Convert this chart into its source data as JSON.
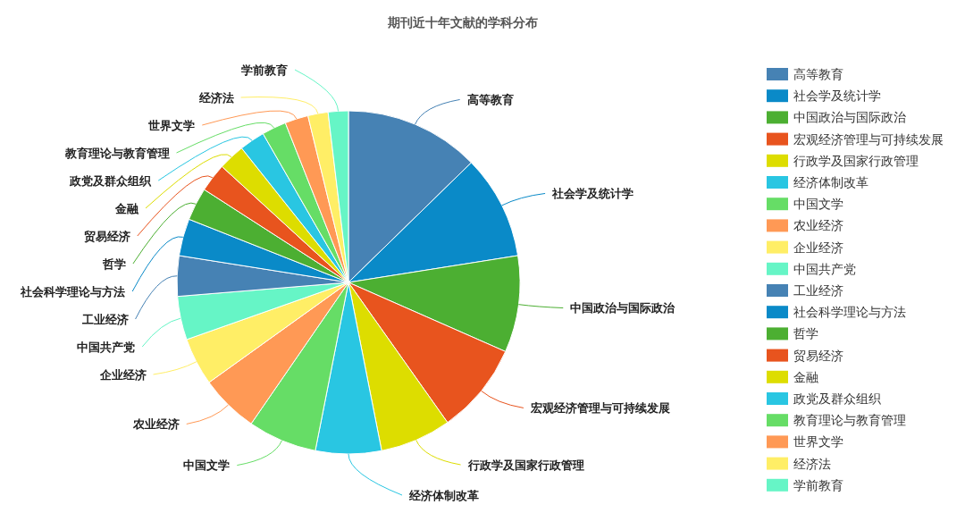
{
  "chart_data": {
    "type": "pie",
    "title": "期刊近十年文献的学科分布",
    "categories": [
      "高等教育",
      "社会学及统计学",
      "中国政治与国际政治",
      "宏观经济管理与可持续发展",
      "行政学及国家行政管理",
      "经济体制改革",
      "中国文学",
      "农业经济",
      "企业经济",
      "中国共产党",
      "工业经济",
      "社会科学理论与方法",
      "哲学",
      "贸易经济",
      "金融",
      "政党及群众组织",
      "教育理论与教育管理",
      "世界文学",
      "经济法",
      "学前教育"
    ],
    "values": [
      12.7,
      9.8,
      9.1,
      8.6,
      6.7,
      6.2,
      6.5,
      5.5,
      4.5,
      4.1,
      3.8,
      3.5,
      3.1,
      2.7,
      2.5,
      2.4,
      2.3,
      2.2,
      1.9,
      1.9
    ],
    "colors": [
      "#4682b4",
      "#0a8ac8",
      "#4caf32",
      "#e8541e",
      "#dddd00",
      "#29c6e2",
      "#66dd66",
      "#ff9955",
      "#ffee66",
      "#66f5c6",
      "#4682b4",
      "#0a8ac8",
      "#4caf32",
      "#e8541e",
      "#dddd00",
      "#29c6e2",
      "#66dd66",
      "#ff9955",
      "#ffee66",
      "#66f5c6"
    ],
    "legend": "right"
  }
}
